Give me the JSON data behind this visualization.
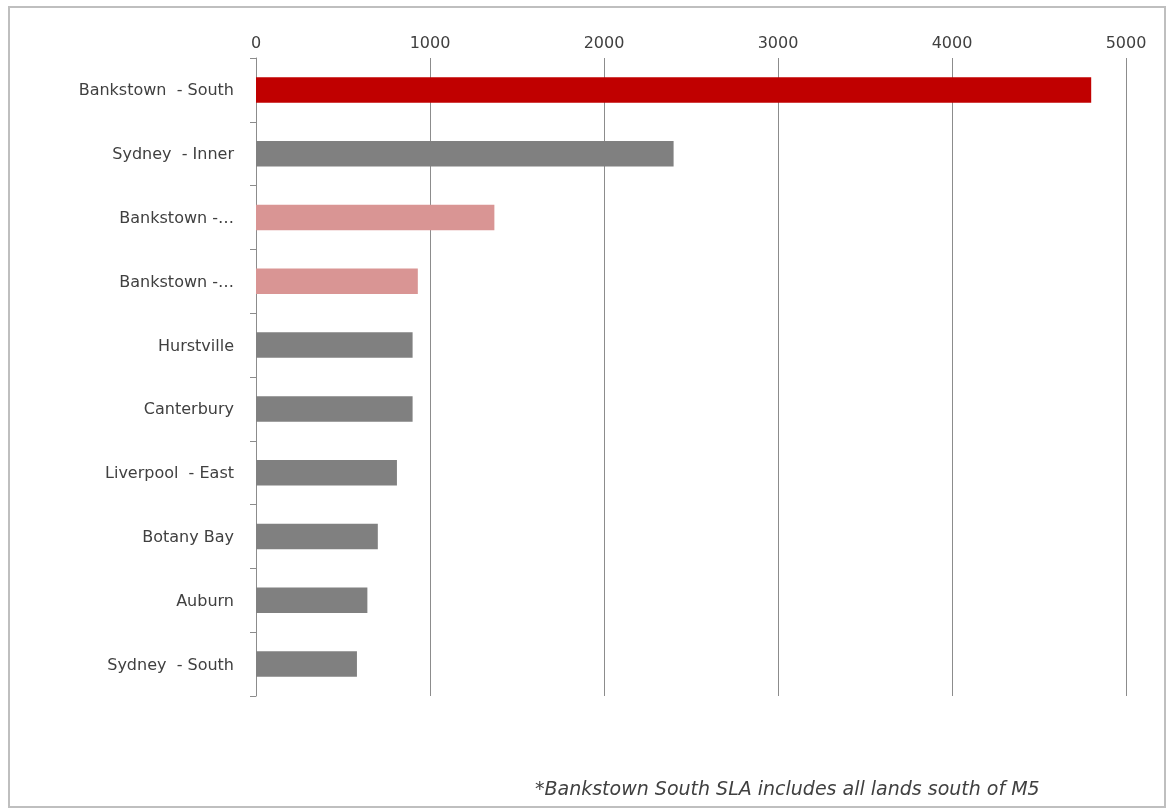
{
  "chart_data": {
    "type": "bar",
    "orientation": "horizontal",
    "categories": [
      "Bankstown  - South",
      "Sydney  - Inner",
      "Bankstown -…",
      "Bankstown -…",
      "Hurstville",
      "Canterbury",
      "Liverpool  - East",
      "Botany Bay",
      "Auburn",
      "Sydney  - South"
    ],
    "values": [
      4800,
      2400,
      1370,
      930,
      900,
      900,
      810,
      700,
      640,
      580
    ],
    "colors": [
      "#c00000",
      "#808080",
      "#d99594",
      "#d99594",
      "#808080",
      "#808080",
      "#808080",
      "#808080",
      "#808080",
      "#808080"
    ],
    "xlim": [
      0,
      5000
    ],
    "xticks": [
      0,
      1000,
      2000,
      3000,
      4000,
      5000
    ],
    "grid": "x",
    "annotations": [
      "*Bankstown South SLA includes all lands south of M5"
    ]
  }
}
